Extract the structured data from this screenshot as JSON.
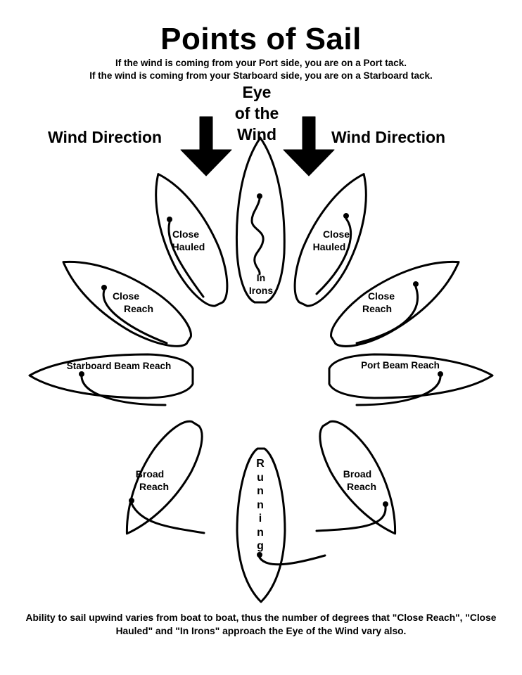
{
  "title": "Points of Sail",
  "subtitle_lines": [
    "If the wind is coming from your Port side, you are on a Port tack.",
    "If the wind is coming from your Starboard side, you are on a Starboard tack."
  ],
  "eye_of_wind": [
    "Eye",
    "of the",
    "Wind"
  ],
  "wind_direction_left": "Wind Direction",
  "wind_direction_right": "Wind Direction",
  "boats": {
    "in_irons": [
      "In",
      "Irons"
    ],
    "close_hauled_left": [
      "Close",
      "Hauled"
    ],
    "close_hauled_right": [
      "Close",
      "Hauled"
    ],
    "close_reach_left": [
      "Close",
      "Reach"
    ],
    "close_reach_right": [
      "Close",
      "Reach"
    ],
    "starboard_beam_reach": "Starboard Beam Reach",
    "port_beam_reach": "Port Beam Reach",
    "broad_reach_left": [
      "Broad",
      "Reach"
    ],
    "broad_reach_right": [
      "Broad",
      "Reach"
    ],
    "running": [
      "R",
      "u",
      "n",
      "n",
      "i",
      "n",
      "g"
    ]
  },
  "footer_text": "Ability to sail upwind varies from boat to boat, thus the number of degrees that \"Close Reach\", \"Close Hauled\" and \"In Irons\" approach the Eye of the Wind vary also."
}
